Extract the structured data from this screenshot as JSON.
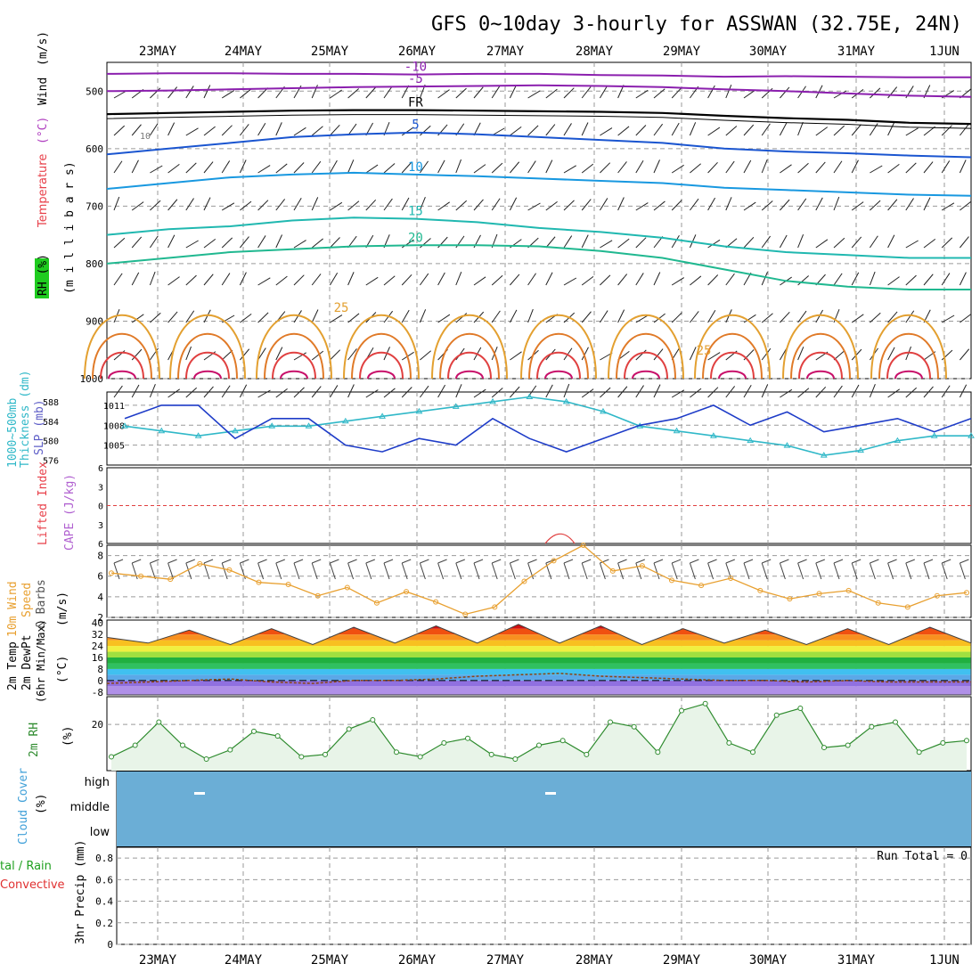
{
  "title": "GFS 0~10day 3-hourly for ASSWAN (32.75E, 24N)",
  "dates": [
    "23MAY",
    "24MAY",
    "25MAY",
    "26MAY",
    "27MAY",
    "28MAY",
    "29MAY",
    "30MAY",
    "31MAY",
    "1JUN"
  ],
  "panel_labels": {
    "upper": {
      "rh": "RH (%)",
      "temperature": "Temperature",
      "temp_unit": "(°C)",
      "wind": "Wind",
      "wind_unit": "(m/s)",
      "pressure": "(m i l l i b a r s)"
    },
    "thickness": {
      "thickness": "1000~500mb",
      "thickness2": "Thickness (dm)",
      "slp": "SLP (mb)"
    },
    "cape": {
      "li": "Lifted Index",
      "cape": "CAPE (J/kg)"
    },
    "wind10m": {
      "l1": "10m Wind",
      "l2": "Speed",
      "l3": "& Barbs",
      "unit": "(m/s)"
    },
    "temp2m": {
      "l1": "2m Temp",
      "l2": "2m DewPt",
      "l3": "(6hr Min/Max)",
      "unit": "(°C)"
    },
    "rh2m": {
      "l1": "2m RH",
      "unit": "(%)"
    },
    "cloud": {
      "l1": "Cloud Cover",
      "unit": "(%)"
    },
    "precip": {
      "l1": "tal / Rain",
      "l2": "Convective",
      "l3": "3hr Precip (mm)",
      "run_total": "Run Total = 0"
    }
  },
  "chart_data": [
    {
      "type": "line",
      "panel": "upper-air",
      "y_axis_ticks": [
        "500",
        "600",
        "700",
        "800",
        "900",
        "1000"
      ],
      "ylim": [
        1000,
        450
      ],
      "isotherm_labels": [
        "-10",
        "-5",
        "FR",
        "5",
        "10",
        "15",
        "20",
        "25"
      ],
      "rh_contour_labels": [
        "10"
      ],
      "isotherms": [
        {
          "name": "-10",
          "values_hPa": [
            470,
            469,
            469,
            470,
            470,
            471,
            470,
            470,
            472,
            473,
            475,
            474,
            475,
            476,
            476
          ]
        },
        {
          "name": "-5",
          "values_hPa": [
            500,
            499,
            497,
            495,
            493,
            492,
            491,
            490,
            491,
            493,
            497,
            500,
            504,
            508,
            510
          ]
        },
        {
          "name": "FR",
          "values_hPa": [
            540,
            538,
            536,
            534,
            533,
            533,
            534,
            535,
            536,
            538,
            543,
            547,
            550,
            555,
            557
          ]
        },
        {
          "name": "5",
          "values_hPa": [
            610,
            600,
            590,
            580,
            575,
            572,
            575,
            580,
            585,
            590,
            600,
            605,
            608,
            612,
            615
          ]
        },
        {
          "name": "10",
          "values_hPa": [
            670,
            660,
            650,
            645,
            642,
            645,
            648,
            652,
            656,
            660,
            668,
            672,
            676,
            680,
            682
          ]
        },
        {
          "name": "15",
          "values_hPa": [
            750,
            740,
            735,
            725,
            720,
            722,
            728,
            738,
            745,
            755,
            770,
            780,
            785,
            790,
            790
          ]
        },
        {
          "name": "20",
          "values_hPa": [
            800,
            790,
            780,
            775,
            770,
            768,
            768,
            770,
            778,
            790,
            810,
            830,
            840,
            845,
            845
          ]
        }
      ]
    },
    {
      "type": "line",
      "panel": "thickness-slp",
      "thickness_ticks": [
        "588",
        "584",
        "580",
        "576"
      ],
      "slp_ticks": [
        "1011",
        "1008",
        "1005"
      ],
      "series": [
        {
          "name": "1000~500mb Thickness (dm)",
          "values": [
            583,
            582,
            581,
            582,
            583,
            583,
            584,
            585,
            586,
            587,
            588,
            589,
            588,
            586,
            583,
            582,
            581,
            580,
            579,
            577,
            578,
            580,
            581,
            581
          ]
        },
        {
          "name": "SLP (mb)",
          "values": [
            1009,
            1011,
            1011,
            1006,
            1009,
            1009,
            1005,
            1004,
            1006,
            1005,
            1009,
            1006,
            1004,
            1006,
            1008,
            1009,
            1011,
            1008,
            1010,
            1007,
            1008,
            1009,
            1007,
            1009
          ]
        }
      ]
    },
    {
      "type": "line",
      "panel": "cape-li",
      "ytick_labels": [
        "6",
        "3",
        "0",
        "3",
        "6"
      ],
      "ylim": [
        6,
        -6
      ]
    },
    {
      "type": "line",
      "panel": "10m-wind",
      "ytick_labels": [
        "8",
        "6",
        "4",
        "2"
      ],
      "ylim": [
        2,
        9
      ],
      "series": [
        {
          "name": "10m Wind Speed",
          "values": [
            6.3,
            6.0,
            5.7,
            7.2,
            6.6,
            5.4,
            5.2,
            4.1,
            4.9,
            3.4,
            4.5,
            3.5,
            2.3,
            3.0,
            5.5,
            7.5,
            9.0,
            6.5,
            7.0,
            5.6,
            5.1,
            5.8,
            4.6,
            3.8,
            4.3,
            4.6,
            3.4,
            3.0,
            4.1,
            4.4
          ]
        }
      ]
    },
    {
      "type": "area",
      "panel": "2m-temp",
      "ytick_labels": [
        "40",
        "32",
        "24",
        "16",
        "8",
        "0",
        "-8"
      ],
      "ylim": [
        -10,
        42
      ],
      "series": [
        {
          "name": "2m Temp",
          "values": [
            30,
            26,
            35,
            25,
            36,
            25,
            37,
            26,
            38,
            26,
            39,
            26,
            38,
            25,
            36,
            26,
            35,
            25,
            36,
            25,
            37,
            26
          ]
        },
        {
          "name": "2m DewPt",
          "values": [
            -2,
            -1,
            0,
            1,
            -1,
            -2,
            0,
            0,
            1,
            3,
            4,
            5,
            3,
            2,
            1,
            0,
            0,
            -1,
            0,
            -1,
            -1,
            -1
          ]
        }
      ]
    },
    {
      "type": "area",
      "panel": "2m-rh",
      "ytick_labels": [
        "20"
      ],
      "ylim": [
        0,
        32
      ],
      "series": [
        {
          "name": "2m RH",
          "values": [
            6,
            11,
            21,
            11,
            5,
            9,
            17,
            15,
            6,
            7,
            18,
            22,
            8,
            6,
            12,
            14,
            7,
            5,
            11,
            13,
            7,
            21,
            19,
            8,
            26,
            29,
            12,
            8,
            24,
            27,
            10,
            11,
            19,
            21,
            8,
            12,
            13
          ]
        }
      ]
    },
    {
      "type": "area",
      "panel": "cloud-cover",
      "ytick_labels": [
        "high",
        "middle",
        "low"
      ]
    },
    {
      "type": "bar",
      "panel": "3hr-precip",
      "ytick_labels": [
        "0.8",
        "0.6",
        "0.4",
        "0.2",
        "0"
      ],
      "ylim": [
        0,
        0.9
      ],
      "values": []
    }
  ],
  "colors": {
    "purple": "#8B1FAE",
    "fr": "#000000",
    "blue5": "#1A55D0",
    "blue10": "#1898E0",
    "teal15": "#20B8B0",
    "green20": "#20B890",
    "orange25": "#E3A030",
    "slp": "#1E3CC8",
    "thick": "#30B8C8",
    "wind10": "#E8A030",
    "rh2m": "#2E8B2E",
    "cloud": "#6BAED6"
  }
}
